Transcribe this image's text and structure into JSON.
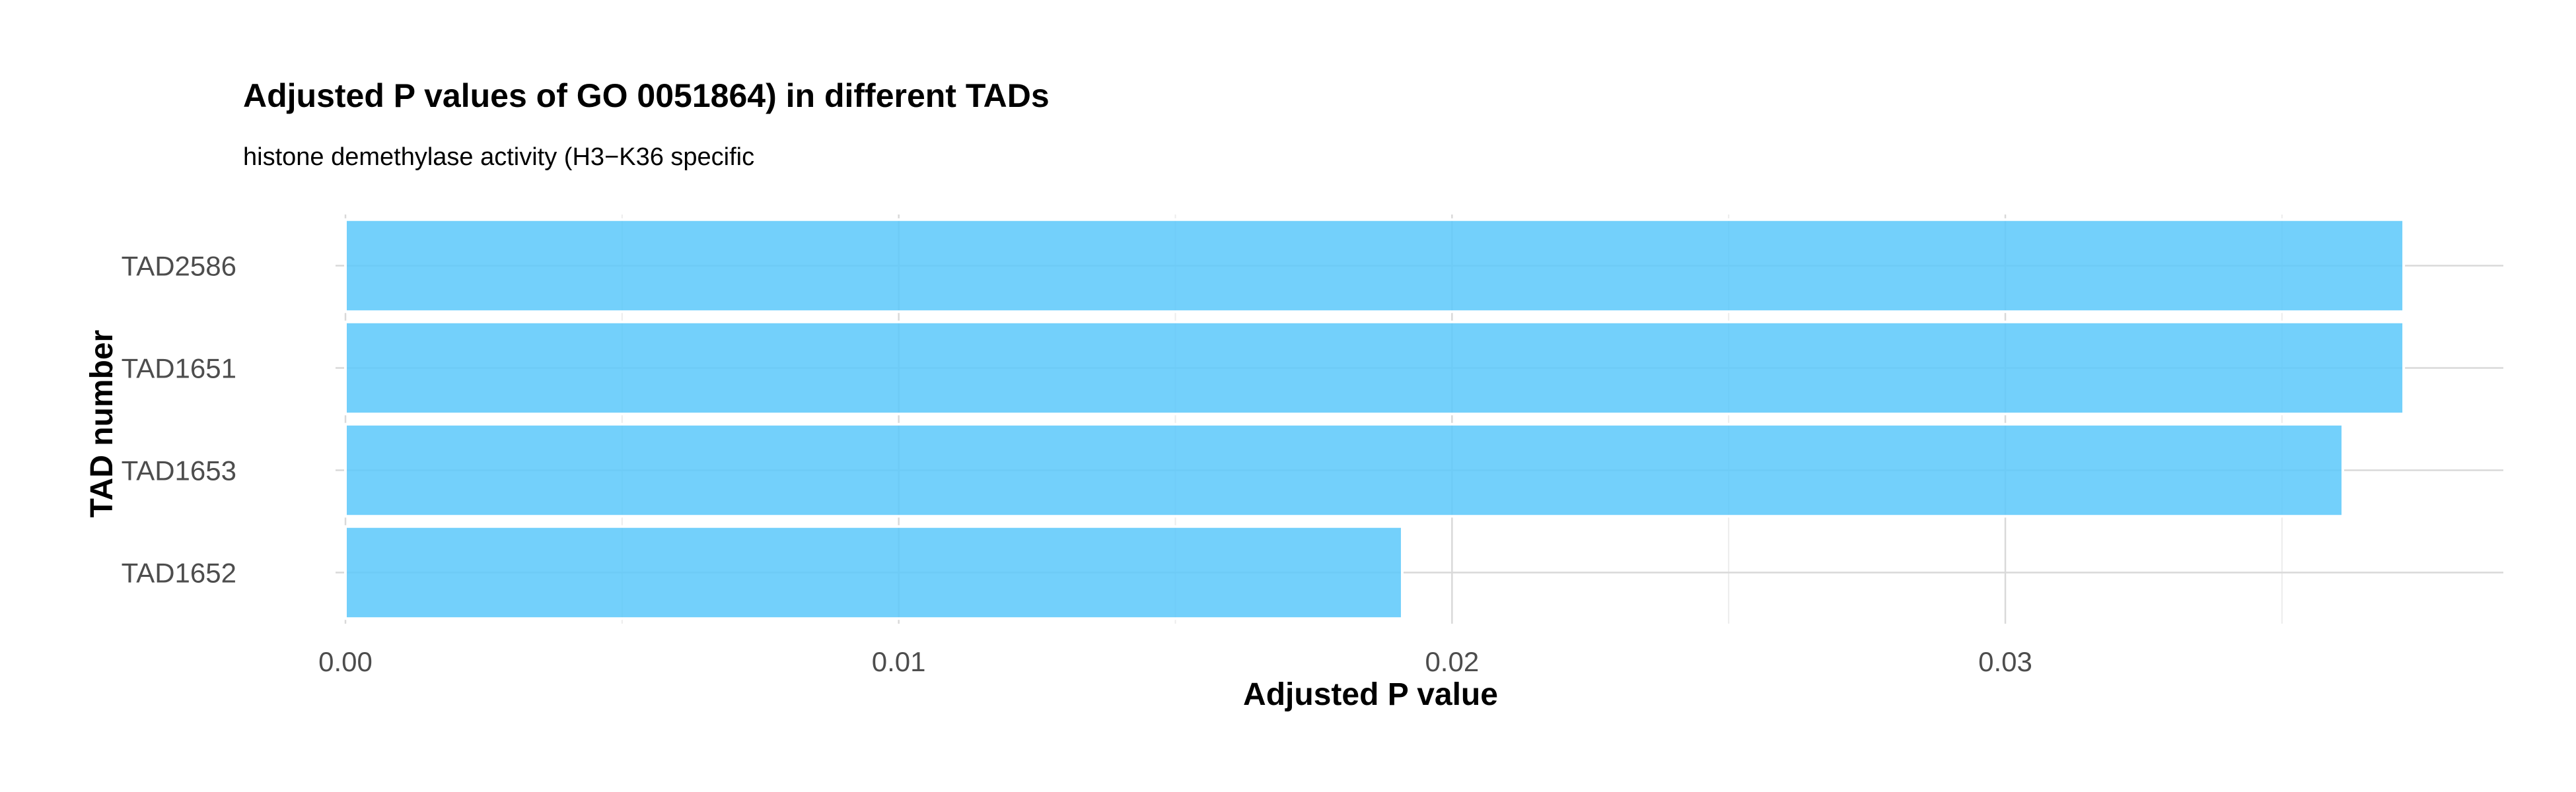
{
  "chart_data": {
    "type": "bar",
    "orientation": "horizontal",
    "title": "Adjusted P values of GO 0051864) in different TADs",
    "subtitle": "histone demethylase activity (H3−K36 specific",
    "xlabel": "Adjusted P value",
    "ylabel": "TAD number",
    "categories": [
      "TAD2586",
      "TAD1651",
      "TAD1653",
      "TAD1652"
    ],
    "values": [
      0.0372,
      0.0372,
      0.0361,
      0.0191
    ],
    "xlim": [
      0,
      0.039
    ],
    "xticks": [
      0,
      0.01,
      0.02,
      0.03
    ],
    "xtick_labels": [
      "0.00",
      "0.01",
      "0.02",
      "0.03"
    ],
    "grid": true,
    "legend": "none",
    "colors": {
      "bar_fill": "#5ac8fa",
      "bar_stroke": "#ffffff",
      "grid_major": "#d9d9d9",
      "grid_minor": "#ececec"
    }
  }
}
